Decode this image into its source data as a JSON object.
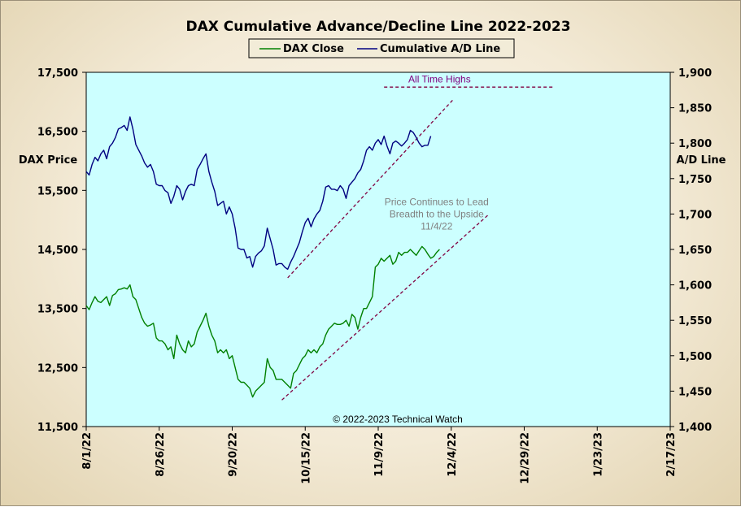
{
  "chart_data": {
    "type": "line",
    "title": "DAX Cumulative Advance/Decline Line 2022-2023",
    "ylabel_left": "DAX Price",
    "ylabel_right": "A/D Line",
    "x_tick_labels": [
      "8/1/22",
      "8/26/22",
      "9/20/22",
      "10/15/22",
      "11/9/22",
      "12/4/22",
      "12/29/22",
      "1/23/23",
      "2/17/23"
    ],
    "y_left_ticks": [
      "11,500",
      "12,500",
      "13,500",
      "14,500",
      "15,500",
      "16,500",
      "17,500"
    ],
    "y_right_ticks": [
      "1,400",
      "1,450",
      "1,500",
      "1,550",
      "1,600",
      "1,650",
      "1,700",
      "1,750",
      "1,800",
      "1,850",
      "1,900"
    ],
    "ylim_left": [
      11500,
      17500
    ],
    "ylim_right": [
      1400,
      1900
    ],
    "x_range_days": [
      0,
      200
    ],
    "grid": false,
    "legend_position": "top-center",
    "colors": {
      "plot_background": "#ccffff",
      "dax_close": "#008000",
      "ad_line": "#000080",
      "trendline": "#800040",
      "annotation_purple": "#800080",
      "annotation_gray": "#808080"
    },
    "series": [
      {
        "name": "DAX Close",
        "axis": "left",
        "points": [
          [
            0,
            13550
          ],
          [
            1,
            13480
          ],
          [
            2,
            13600
          ],
          [
            3,
            13700
          ],
          [
            4,
            13620
          ],
          [
            5,
            13600
          ],
          [
            6,
            13650
          ],
          [
            7,
            13700
          ],
          [
            8,
            13550
          ],
          [
            9,
            13720
          ],
          [
            10,
            13750
          ],
          [
            11,
            13820
          ],
          [
            12,
            13830
          ],
          [
            13,
            13850
          ],
          [
            14,
            13830
          ],
          [
            15,
            13900
          ],
          [
            16,
            13700
          ],
          [
            17,
            13650
          ],
          [
            18,
            13500
          ],
          [
            19,
            13350
          ],
          [
            20,
            13250
          ],
          [
            21,
            13200
          ],
          [
            22,
            13220
          ],
          [
            23,
            13250
          ],
          [
            24,
            13000
          ],
          [
            25,
            12950
          ],
          [
            26,
            12950
          ],
          [
            27,
            12900
          ],
          [
            28,
            12800
          ],
          [
            29,
            12850
          ],
          [
            30,
            12650
          ],
          [
            31,
            13050
          ],
          [
            32,
            12900
          ],
          [
            33,
            12800
          ],
          [
            34,
            12750
          ],
          [
            35,
            12950
          ],
          [
            36,
            12850
          ],
          [
            37,
            12900
          ],
          [
            38,
            13100
          ],
          [
            39,
            13200
          ],
          [
            40,
            13300
          ],
          [
            41,
            13420
          ],
          [
            42,
            13200
          ],
          [
            43,
            13050
          ],
          [
            44,
            12950
          ],
          [
            45,
            12750
          ],
          [
            46,
            12800
          ],
          [
            47,
            12750
          ],
          [
            48,
            12800
          ],
          [
            49,
            12650
          ],
          [
            50,
            12700
          ],
          [
            51,
            12500
          ],
          [
            52,
            12300
          ],
          [
            53,
            12250
          ],
          [
            54,
            12250
          ],
          [
            55,
            12200
          ],
          [
            56,
            12150
          ],
          [
            57,
            12000
          ],
          [
            58,
            12100
          ],
          [
            59,
            12150
          ],
          [
            60,
            12200
          ],
          [
            61,
            12250
          ],
          [
            62,
            12650
          ],
          [
            63,
            12500
          ],
          [
            64,
            12450
          ],
          [
            65,
            12300
          ],
          [
            66,
            12300
          ],
          [
            67,
            12300
          ],
          [
            68,
            12250
          ],
          [
            69,
            12200
          ],
          [
            70,
            12150
          ],
          [
            71,
            12400
          ],
          [
            72,
            12450
          ],
          [
            73,
            12550
          ],
          [
            74,
            12650
          ],
          [
            75,
            12700
          ],
          [
            76,
            12800
          ],
          [
            77,
            12750
          ],
          [
            78,
            12800
          ],
          [
            79,
            12750
          ],
          [
            80,
            12850
          ],
          [
            81,
            12900
          ],
          [
            82,
            13050
          ],
          [
            83,
            13150
          ],
          [
            84,
            13200
          ],
          [
            85,
            13250
          ],
          [
            86,
            13230
          ],
          [
            87,
            13230
          ],
          [
            88,
            13250
          ],
          [
            89,
            13300
          ],
          [
            90,
            13200
          ],
          [
            91,
            13400
          ],
          [
            92,
            13350
          ],
          [
            93,
            13150
          ],
          [
            94,
            13350
          ],
          [
            95,
            13500
          ],
          [
            96,
            13500
          ],
          [
            97,
            13600
          ],
          [
            98,
            13700
          ],
          [
            99,
            14200
          ],
          [
            100,
            14250
          ],
          [
            101,
            14350
          ],
          [
            102,
            14300
          ],
          [
            103,
            14350
          ],
          [
            104,
            14400
          ],
          [
            105,
            14250
          ],
          [
            106,
            14300
          ],
          [
            107,
            14450
          ],
          [
            108,
            14400
          ],
          [
            109,
            14450
          ],
          [
            110,
            14450
          ],
          [
            111,
            14500
          ],
          [
            112,
            14450
          ],
          [
            113,
            14400
          ],
          [
            114,
            14480
          ],
          [
            115,
            14550
          ],
          [
            116,
            14500
          ],
          [
            117,
            14420
          ],
          [
            118,
            14350
          ],
          [
            119,
            14380
          ],
          [
            120,
            14450
          ],
          [
            121,
            14500
          ]
        ]
      },
      {
        "name": "Cumulative A/D Line",
        "axis": "right",
        "points": [
          [
            0,
            1760
          ],
          [
            1,
            1755
          ],
          [
            2,
            1770
          ],
          [
            3,
            1780
          ],
          [
            4,
            1775
          ],
          [
            5,
            1785
          ],
          [
            6,
            1790
          ],
          [
            7,
            1778
          ],
          [
            8,
            1795
          ],
          [
            9,
            1800
          ],
          [
            10,
            1808
          ],
          [
            11,
            1820
          ],
          [
            12,
            1822
          ],
          [
            13,
            1825
          ],
          [
            14,
            1818
          ],
          [
            15,
            1837
          ],
          [
            16,
            1820
          ],
          [
            17,
            1798
          ],
          [
            18,
            1790
          ],
          [
            19,
            1782
          ],
          [
            20,
            1772
          ],
          [
            21,
            1766
          ],
          [
            22,
            1770
          ],
          [
            23,
            1760
          ],
          [
            24,
            1742
          ],
          [
            25,
            1740
          ],
          [
            26,
            1740
          ],
          [
            27,
            1733
          ],
          [
            28,
            1730
          ],
          [
            29,
            1715
          ],
          [
            30,
            1725
          ],
          [
            31,
            1740
          ],
          [
            32,
            1735
          ],
          [
            33,
            1720
          ],
          [
            34,
            1732
          ],
          [
            35,
            1740
          ],
          [
            36,
            1742
          ],
          [
            37,
            1740
          ],
          [
            38,
            1763
          ],
          [
            39,
            1770
          ],
          [
            40,
            1778
          ],
          [
            41,
            1785
          ],
          [
            42,
            1760
          ],
          [
            43,
            1745
          ],
          [
            44,
            1732
          ],
          [
            45,
            1712
          ],
          [
            46,
            1715
          ],
          [
            47,
            1718
          ],
          [
            48,
            1700
          ],
          [
            49,
            1710
          ],
          [
            50,
            1700
          ],
          [
            51,
            1680
          ],
          [
            52,
            1652
          ],
          [
            53,
            1650
          ],
          [
            54,
            1650
          ],
          [
            55,
            1638
          ],
          [
            56,
            1640
          ],
          [
            57,
            1625
          ],
          [
            58,
            1640
          ],
          [
            59,
            1645
          ],
          [
            60,
            1648
          ],
          [
            61,
            1655
          ],
          [
            62,
            1680
          ],
          [
            63,
            1665
          ],
          [
            64,
            1650
          ],
          [
            65,
            1628
          ],
          [
            66,
            1630
          ],
          [
            67,
            1630
          ],
          [
            68,
            1625
          ],
          [
            69,
            1622
          ],
          [
            70,
            1632
          ],
          [
            71,
            1640
          ],
          [
            72,
            1650
          ],
          [
            73,
            1660
          ],
          [
            74,
            1675
          ],
          [
            75,
            1688
          ],
          [
            76,
            1694
          ],
          [
            77,
            1682
          ],
          [
            78,
            1693
          ],
          [
            79,
            1700
          ],
          [
            80,
            1705
          ],
          [
            81,
            1718
          ],
          [
            82,
            1738
          ],
          [
            83,
            1740
          ],
          [
            84,
            1735
          ],
          [
            85,
            1735
          ],
          [
            86,
            1733
          ],
          [
            87,
            1740
          ],
          [
            88,
            1735
          ],
          [
            89,
            1722
          ],
          [
            90,
            1740
          ],
          [
            91,
            1745
          ],
          [
            92,
            1750
          ],
          [
            93,
            1758
          ],
          [
            94,
            1763
          ],
          [
            95,
            1775
          ],
          [
            96,
            1790
          ],
          [
            97,
            1795
          ],
          [
            98,
            1790
          ],
          [
            99,
            1800
          ],
          [
            100,
            1805
          ],
          [
            101,
            1798
          ],
          [
            102,
            1810
          ],
          [
            103,
            1796
          ],
          [
            104,
            1785
          ],
          [
            105,
            1800
          ],
          [
            106,
            1803
          ],
          [
            107,
            1800
          ],
          [
            108,
            1796
          ],
          [
            109,
            1800
          ],
          [
            110,
            1805
          ],
          [
            111,
            1818
          ],
          [
            112,
            1815
          ],
          [
            113,
            1808
          ],
          [
            114,
            1800
          ],
          [
            115,
            1795
          ],
          [
            116,
            1797
          ],
          [
            117,
            1797
          ],
          [
            118,
            1810
          ]
        ]
      }
    ],
    "trendlines": [
      {
        "axis": "right",
        "from": [
          69,
          1610
        ],
        "to": [
          126,
          1863
        ]
      },
      {
        "axis": "left",
        "from": [
          67,
          11950
        ],
        "to": [
          138,
          15100
        ]
      }
    ],
    "reference_lines": [
      {
        "axis": "left",
        "y": 17250,
        "x_from": 102,
        "x_to": 160
      }
    ],
    "annotations": [
      {
        "lines": [
          "All Time Highs"
        ],
        "x": 121,
        "y": 17330,
        "axis": "left",
        "color": "purple"
      },
      {
        "lines": [
          "Price Continues to Lead",
          "Breadth to the Upside",
          "11/4/22"
        ],
        "x": 120,
        "y": 15250,
        "axis": "left",
        "color": "gray"
      }
    ],
    "copyright": "© 2022-2023  Technical  Watch"
  }
}
